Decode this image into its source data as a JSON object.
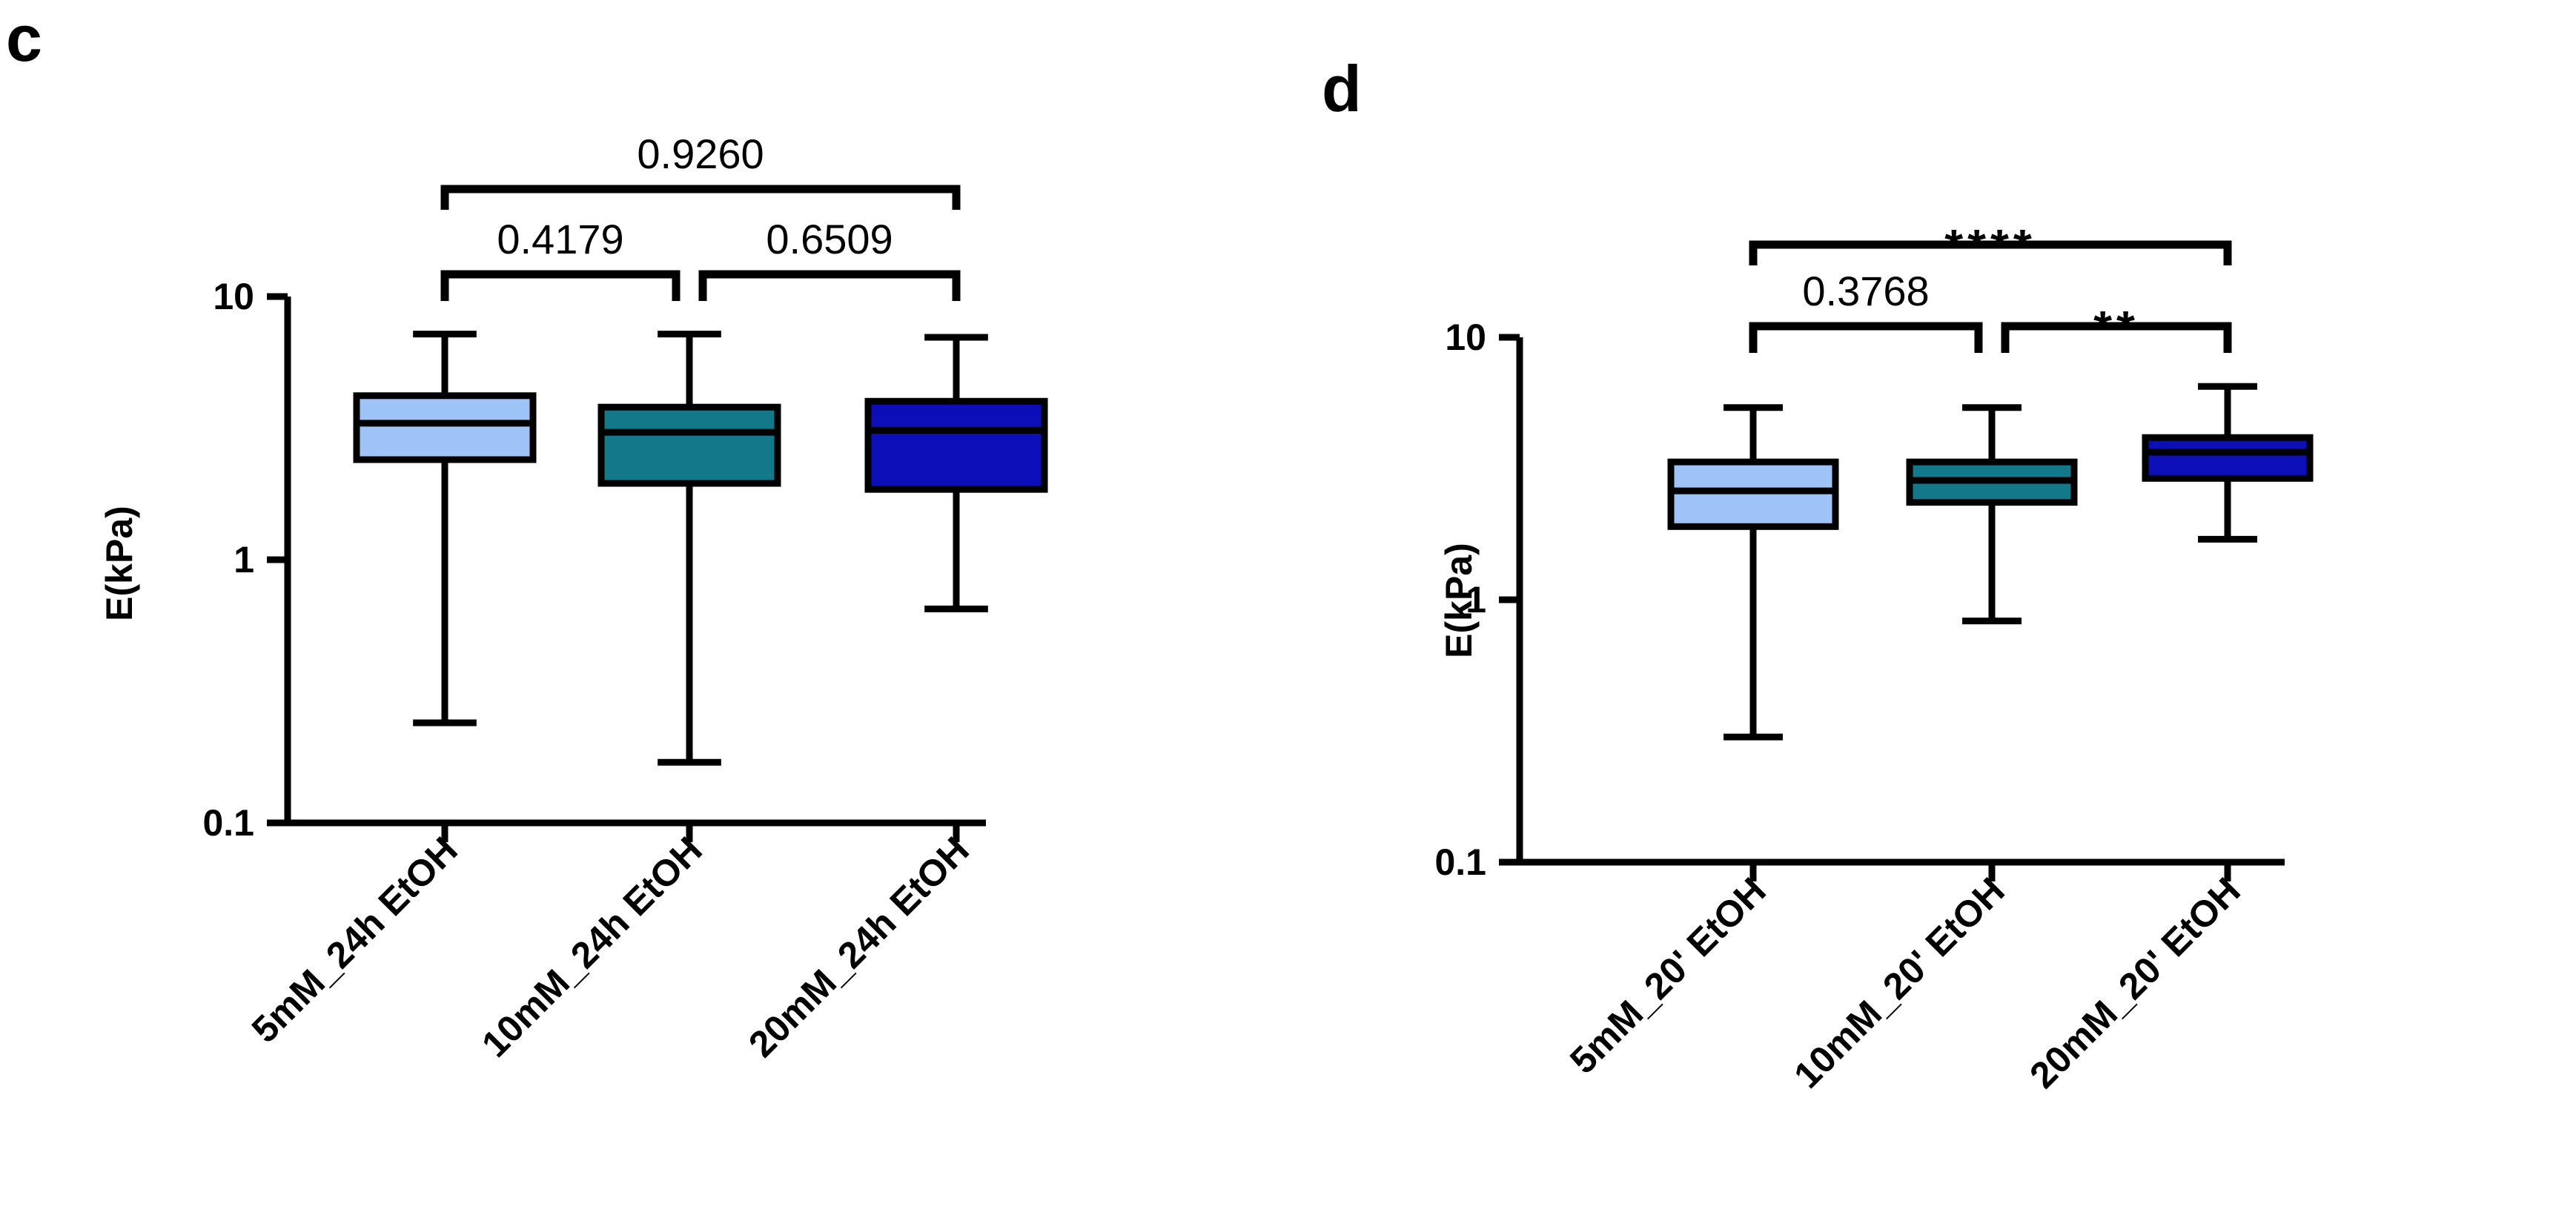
{
  "colors": {
    "light_blue": "#9ec3f7",
    "teal": "#12788a",
    "dark_blue": "#0c0fb8",
    "stroke": "#000000"
  },
  "chart_data": [
    {
      "panel": "c",
      "type": "boxplot",
      "yscale": "log",
      "ylim": [
        0.1,
        10
      ],
      "ylabel": "E(kPa)",
      "yticks": [
        "0.1",
        "1",
        "10"
      ],
      "categories": [
        "5mM_24h EtOH",
        "10mM_24h EtOH",
        "20mM_24h EtOH"
      ],
      "boxes": [
        {
          "name": "5mM_24h EtOH",
          "min": 0.24,
          "q1": 2.4,
          "median": 3.3,
          "q3": 4.2,
          "max": 7.2,
          "color": "light_blue"
        },
        {
          "name": "10mM_24h EtOH",
          "min": 0.17,
          "q1": 1.95,
          "median": 3.05,
          "q3": 3.8,
          "max": 7.2,
          "color": "teal"
        },
        {
          "name": "20mM_24h EtOH",
          "min": 0.65,
          "q1": 1.85,
          "median": 3.1,
          "q3": 4.0,
          "max": 7.0,
          "color": "dark_blue"
        }
      ],
      "comparisons": [
        {
          "from": 0,
          "to": 1,
          "label": "0.4179"
        },
        {
          "from": 1,
          "to": 2,
          "label": "0.6509"
        },
        {
          "from": 0,
          "to": 2,
          "label": "0.9260"
        }
      ]
    },
    {
      "panel": "d",
      "type": "boxplot",
      "yscale": "log",
      "ylim": [
        0.1,
        10
      ],
      "ylabel": "E(kPa)",
      "yticks": [
        "0.1",
        "1",
        "10"
      ],
      "categories": [
        "5mM_20' EtOH",
        "10mM_20' EtOH",
        "20mM_20' EtOH"
      ],
      "boxes": [
        {
          "name": "5mM_20' EtOH",
          "min": 0.3,
          "q1": 1.9,
          "median": 2.6,
          "q3": 3.35,
          "max": 5.4,
          "color": "light_blue"
        },
        {
          "name": "10mM_20' EtOH",
          "min": 0.83,
          "q1": 2.35,
          "median": 2.85,
          "q3": 3.35,
          "max": 5.4,
          "color": "teal"
        },
        {
          "name": "20mM_20' EtOH",
          "min": 1.7,
          "q1": 2.9,
          "median": 3.65,
          "q3": 4.15,
          "max": 6.5,
          "color": "dark_blue"
        }
      ],
      "comparisons": [
        {
          "from": 0,
          "to": 1,
          "label": "0.3768"
        },
        {
          "from": 1,
          "to": 2,
          "label": "**"
        },
        {
          "from": 0,
          "to": 2,
          "label": "****"
        }
      ]
    }
  ]
}
